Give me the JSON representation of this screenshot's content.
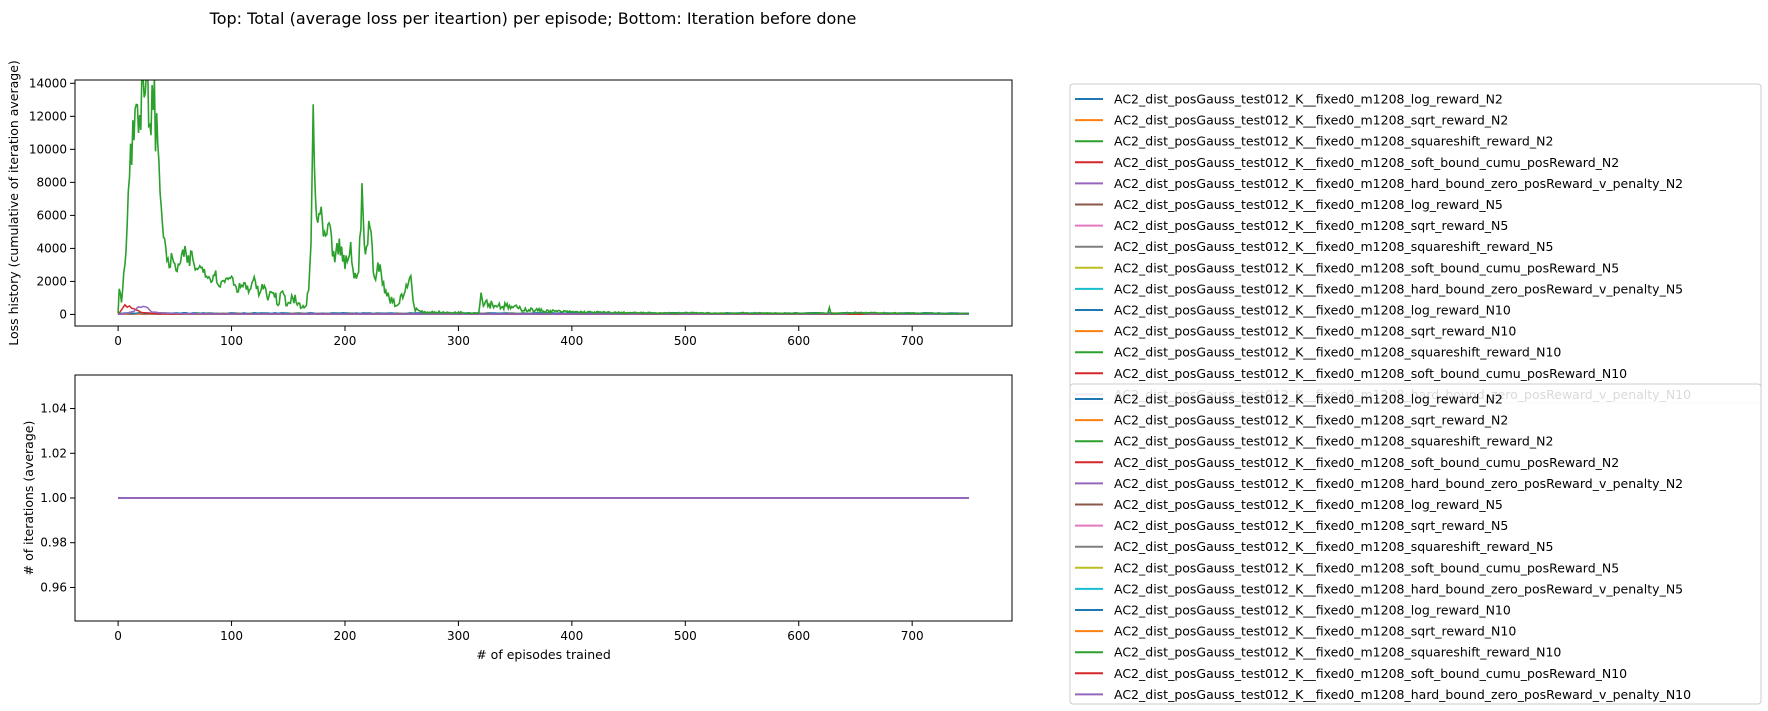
{
  "suptitle": "Top: Total (average loss per iteartion) per episode; Bottom: Iteration before done",
  "colors": [
    "#1f77b4",
    "#ff7f0e",
    "#2ca02c",
    "#d62728",
    "#9467bd",
    "#8c564b",
    "#e377c2",
    "#7f7f7f",
    "#bcbd22",
    "#17becf",
    "#1f77b4",
    "#ff7f0e",
    "#2ca02c",
    "#d62728",
    "#9467bd"
  ],
  "series_names": [
    "AC2_dist_posGauss_test012_K__fixed0_m1208_log_reward_N2",
    "AC2_dist_posGauss_test012_K__fixed0_m1208_sqrt_reward_N2",
    "AC2_dist_posGauss_test012_K__fixed0_m1208_squareshift_reward_N2",
    "AC2_dist_posGauss_test012_K__fixed0_m1208_soft_bound_cumu_posReward_N2",
    "AC2_dist_posGauss_test012_K__fixed0_m1208_hard_bound_zero_posReward_v_penalty_N2",
    "AC2_dist_posGauss_test012_K__fixed0_m1208_log_reward_N5",
    "AC2_dist_posGauss_test012_K__fixed0_m1208_sqrt_reward_N5",
    "AC2_dist_posGauss_test012_K__fixed0_m1208_squareshift_reward_N5",
    "AC2_dist_posGauss_test012_K__fixed0_m1208_soft_bound_cumu_posReward_N5",
    "AC2_dist_posGauss_test012_K__fixed0_m1208_hard_bound_zero_posReward_v_penalty_N5",
    "AC2_dist_posGauss_test012_K__fixed0_m1208_log_reward_N10",
    "AC2_dist_posGauss_test012_K__fixed0_m1208_sqrt_reward_N10",
    "AC2_dist_posGauss_test012_K__fixed0_m1208_squareshift_reward_N10",
    "AC2_dist_posGauss_test012_K__fixed0_m1208_soft_bound_cumu_posReward_N10",
    "AC2_dist_posGauss_test012_K__fixed0_m1208_hard_bound_zero_posReward_v_penalty_N10"
  ],
  "chart_data": [
    {
      "type": "line",
      "ylabel": "Loss history (cumulative of iteration average)",
      "xlabel": "",
      "xlim": [
        -38,
        788
      ],
      "ylim": [
        -700,
        14200
      ],
      "xticks": [
        0,
        100,
        200,
        300,
        400,
        500,
        600,
        700
      ],
      "yticks": [
        0,
        2000,
        4000,
        6000,
        8000,
        10000,
        12000,
        14000
      ],
      "episodes": 750,
      "highlighted_series": {
        "name": "AC2_dist_posGauss_test012_K__fixed0_m1208_squareshift_reward_N2",
        "points": [
          [
            0,
            50
          ],
          [
            1,
            1600
          ],
          [
            3,
            900
          ],
          [
            5,
            2500
          ],
          [
            8,
            5500
          ],
          [
            10,
            8500
          ],
          [
            12,
            10000
          ],
          [
            14,
            11500
          ],
          [
            16,
            12500
          ],
          [
            18,
            13000
          ],
          [
            20,
            12500
          ],
          [
            22,
            13200
          ],
          [
            24,
            13000
          ],
          [
            26,
            13500
          ],
          [
            28,
            12000
          ],
          [
            30,
            12800
          ],
          [
            32,
            12500
          ],
          [
            34,
            11000
          ],
          [
            36,
            9000
          ],
          [
            38,
            7000
          ],
          [
            40,
            5200
          ],
          [
            42,
            3500
          ],
          [
            45,
            3100
          ],
          [
            48,
            3300
          ],
          [
            50,
            2800
          ],
          [
            55,
            3000
          ],
          [
            58,
            3700
          ],
          [
            62,
            3200
          ],
          [
            65,
            3500
          ],
          [
            70,
            2600
          ],
          [
            75,
            3000
          ],
          [
            80,
            2200
          ],
          [
            85,
            2500
          ],
          [
            90,
            1800
          ],
          [
            95,
            2100
          ],
          [
            100,
            2400
          ],
          [
            105,
            1500
          ],
          [
            110,
            2000
          ],
          [
            115,
            1400
          ],
          [
            120,
            2000
          ],
          [
            125,
            1200
          ],
          [
            128,
            1800
          ],
          [
            132,
            1000
          ],
          [
            135,
            1500
          ],
          [
            140,
            800
          ],
          [
            145,
            1300
          ],
          [
            150,
            700
          ],
          [
            155,
            900
          ],
          [
            160,
            500
          ],
          [
            165,
            400
          ],
          [
            168,
            1500
          ],
          [
            170,
            4000
          ],
          [
            172,
            12300
          ],
          [
            174,
            7000
          ],
          [
            176,
            5500
          ],
          [
            178,
            6000
          ],
          [
            182,
            4500
          ],
          [
            186,
            5000
          ],
          [
            190,
            3500
          ],
          [
            195,
            4000
          ],
          [
            200,
            3000
          ],
          [
            205,
            4100
          ],
          [
            208,
            2000
          ],
          [
            212,
            3000
          ],
          [
            215,
            6900
          ],
          [
            218,
            3500
          ],
          [
            222,
            5500
          ],
          [
            226,
            2200
          ],
          [
            230,
            3000
          ],
          [
            235,
            1500
          ],
          [
            240,
            1000
          ],
          [
            245,
            600
          ],
          [
            250,
            900
          ],
          [
            255,
            1800
          ],
          [
            258,
            2300
          ],
          [
            261,
            400
          ],
          [
            265,
            200
          ],
          [
            270,
            120
          ],
          [
            280,
            150
          ],
          [
            290,
            100
          ],
          [
            300,
            120
          ],
          [
            310,
            90
          ],
          [
            318,
            100
          ],
          [
            320,
            1300
          ],
          [
            322,
            800
          ],
          [
            330,
            600
          ],
          [
            340,
            500
          ],
          [
            350,
            400
          ],
          [
            360,
            300
          ],
          [
            370,
            250
          ],
          [
            380,
            200
          ],
          [
            400,
            150
          ],
          [
            420,
            130
          ],
          [
            450,
            100
          ],
          [
            480,
            80
          ],
          [
            500,
            90
          ],
          [
            530,
            70
          ],
          [
            560,
            80
          ],
          [
            600,
            60
          ],
          [
            625,
            80
          ],
          [
            627,
            350
          ],
          [
            629,
            60
          ],
          [
            650,
            90
          ],
          [
            700,
            70
          ],
          [
            750,
            50
          ]
        ]
      },
      "secondary_series": [
        {
          "name": "AC2_dist_posGauss_test012_K__fixed0_m1208_soft_bound_cumu_posReward_N2",
          "points": [
            [
              0,
              0
            ],
            [
              3,
              300
            ],
            [
              6,
              500
            ],
            [
              10,
              450
            ],
            [
              14,
              350
            ],
            [
              18,
              200
            ],
            [
              22,
              100
            ],
            [
              30,
              60
            ],
            [
              50,
              30
            ],
            [
              750,
              10
            ]
          ]
        },
        {
          "name": "AC2_dist_posGauss_test012_K__fixed0_m1208_hard_bound_zero_posReward_v_penalty_N2",
          "points": [
            [
              0,
              0
            ],
            [
              8,
              100
            ],
            [
              14,
              200
            ],
            [
              18,
              400
            ],
            [
              22,
              450
            ],
            [
              26,
              350
            ],
            [
              30,
              150
            ],
            [
              40,
              80
            ],
            [
              60,
              40
            ],
            [
              100,
              20
            ],
            [
              640,
              30
            ],
            [
              650,
              120
            ],
            [
              660,
              30
            ],
            [
              750,
              10
            ]
          ]
        }
      ]
    },
    {
      "type": "line",
      "ylabel": "# of iterations (average)",
      "xlabel": "# of episodes trained",
      "xlim": [
        -38,
        788
      ],
      "ylim": [
        0.945,
        1.055
      ],
      "xticks": [
        0,
        100,
        200,
        300,
        400,
        500,
        600,
        700
      ],
      "yticks": [
        0.96,
        0.98,
        1.0,
        1.02,
        1.04
      ],
      "ytick_labels": [
        "0.96",
        "0.98",
        "1.00",
        "1.02",
        "1.04"
      ],
      "constant_value": 1.0,
      "x_range": [
        0,
        750
      ]
    }
  ]
}
